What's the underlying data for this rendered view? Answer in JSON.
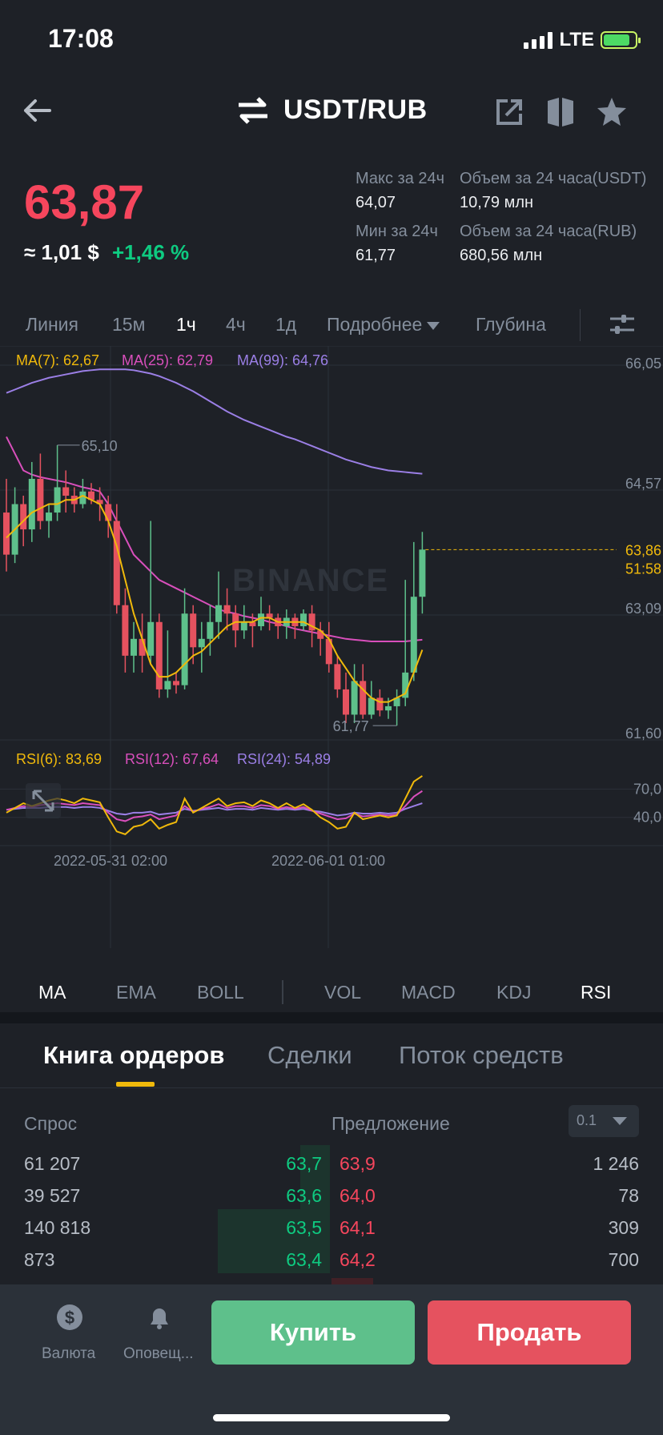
{
  "status": {
    "time": "17:08",
    "network": "LTE"
  },
  "header": {
    "pair": "USDT/RUB"
  },
  "ticker": {
    "last_price": "63,87",
    "approx_usd": "≈ 1,01 $",
    "change_pct": "+1,46 %",
    "high_label": "Макс за 24ч",
    "high_value": "64,07",
    "low_label": "Мин за 24ч",
    "low_value": "61,77",
    "vol_base_label": "Объем за 24 часа(USDT)",
    "vol_base_value": "10,79 млн",
    "vol_quote_label": "Объем за 24 часа(RUB)",
    "vol_quote_value": "680,56 млн"
  },
  "intervals": [
    "Линия",
    "15м",
    "1ч",
    "4ч",
    "1д",
    "Подробнее",
    "Глубина"
  ],
  "active_interval": "1ч",
  "chart_data": {
    "type": "candlestick",
    "ma_legend": [
      "MA(7): 62,67",
      "MA(25): 62,79",
      "MA(99): 64,76"
    ],
    "y_ticks": [
      "66,05",
      "64,57",
      "63,09",
      "61,60"
    ],
    "y_range": [
      61.6,
      66.05
    ],
    "current_price_label": "63,86",
    "countdown_label": "51:58",
    "high_marker": "65,10",
    "low_marker": "61,77",
    "watermark": "BINANCE",
    "x_labels": [
      "2022-05-31 02:00",
      "2022-06-01 01:00"
    ],
    "candles": [
      [
        64.3,
        63.8,
        64.7,
        63.6
      ],
      [
        63.8,
        64.4,
        64.6,
        63.7
      ],
      [
        64.4,
        64.1,
        64.5,
        63.9
      ],
      [
        64.1,
        64.7,
        64.9,
        63.95
      ],
      [
        64.7,
        64.2,
        65.0,
        64.1
      ],
      [
        64.2,
        64.3,
        64.4,
        64.0
      ],
      [
        64.3,
        64.6,
        65.1,
        64.2
      ],
      [
        64.6,
        64.5,
        64.8,
        64.3
      ],
      [
        64.5,
        64.4,
        64.6,
        64.3
      ],
      [
        64.4,
        64.55,
        64.7,
        64.35
      ],
      [
        64.55,
        64.45,
        64.65,
        64.4
      ],
      [
        64.45,
        64.4,
        64.6,
        64.2
      ],
      [
        64.4,
        64.2,
        64.5,
        64.0
      ],
      [
        64.2,
        63.2,
        64.4,
        63.1
      ],
      [
        63.2,
        62.6,
        63.4,
        62.4
      ],
      [
        62.6,
        62.8,
        63.0,
        62.4
      ],
      [
        62.8,
        62.6,
        63.1,
        62.4
      ],
      [
        62.6,
        63.0,
        64.2,
        62.5
      ],
      [
        63.0,
        62.2,
        63.1,
        62.1
      ],
      [
        62.2,
        62.3,
        62.9,
        62.1
      ],
      [
        62.3,
        62.25,
        62.4,
        62.15
      ],
      [
        62.25,
        63.1,
        63.4,
        62.2
      ],
      [
        63.1,
        62.7,
        63.2,
        62.5
      ],
      [
        62.7,
        62.8,
        63.0,
        62.4
      ],
      [
        62.8,
        63.0,
        63.2,
        62.6
      ],
      [
        63.0,
        63.2,
        63.6,
        62.8
      ],
      [
        63.2,
        63.1,
        63.4,
        62.9
      ],
      [
        63.1,
        62.9,
        63.2,
        62.7
      ],
      [
        62.9,
        63.0,
        63.2,
        62.8
      ],
      [
        63.0,
        62.95,
        63.1,
        62.7
      ],
      [
        62.95,
        63.1,
        63.3,
        62.9
      ],
      [
        63.1,
        63.05,
        63.2,
        62.9
      ],
      [
        63.05,
        62.95,
        63.1,
        62.8
      ],
      [
        62.95,
        63.05,
        63.15,
        62.8
      ],
      [
        63.05,
        62.95,
        63.1,
        62.8
      ],
      [
        62.95,
        63.1,
        63.15,
        62.9
      ],
      [
        63.1,
        62.9,
        63.2,
        62.7
      ],
      [
        62.9,
        62.8,
        63.0,
        62.6
      ],
      [
        62.8,
        62.5,
        63.0,
        62.4
      ],
      [
        62.5,
        62.2,
        62.6,
        62.1
      ],
      [
        62.2,
        61.9,
        62.4,
        61.8
      ],
      [
        61.9,
        62.3,
        62.5,
        61.8
      ],
      [
        62.3,
        61.9,
        62.5,
        61.85
      ],
      [
        61.9,
        62.1,
        62.3,
        61.85
      ],
      [
        62.1,
        61.95,
        62.2,
        61.88
      ],
      [
        61.95,
        62.0,
        62.1,
        61.85
      ],
      [
        62.0,
        62.1,
        62.2,
        61.77
      ],
      [
        62.1,
        62.4,
        63.5,
        62.0
      ],
      [
        62.4,
        63.3,
        63.95,
        62.3
      ],
      [
        63.3,
        63.86,
        64.07,
        63.1
      ]
    ],
    "ma7": [
      64.0,
      64.1,
      64.2,
      64.3,
      64.35,
      64.4,
      64.4,
      64.45,
      64.45,
      64.5,
      64.45,
      64.4,
      64.2,
      63.9,
      63.5,
      63.1,
      62.8,
      62.5,
      62.35,
      62.35,
      62.4,
      62.5,
      62.6,
      62.65,
      62.75,
      62.85,
      62.95,
      63.0,
      63.0,
      63.0,
      63.05,
      63.05,
      63.0,
      63.0,
      63.0,
      63.0,
      62.95,
      62.9,
      62.8,
      62.6,
      62.45,
      62.3,
      62.2,
      62.1,
      62.05,
      62.05,
      62.1,
      62.15,
      62.4,
      62.67
    ],
    "ma25": [
      65.2,
      65.0,
      64.8,
      64.75,
      64.72,
      64.7,
      64.68,
      64.66,
      64.63,
      64.6,
      64.58,
      64.55,
      64.4,
      64.2,
      64.0,
      63.8,
      63.7,
      63.6,
      63.5,
      63.45,
      63.4,
      63.35,
      63.3,
      63.25,
      63.2,
      63.15,
      63.12,
      63.1,
      63.07,
      63.05,
      63.03,
      63.0,
      62.98,
      62.95,
      62.92,
      62.9,
      62.88,
      62.86,
      62.84,
      62.82,
      62.8,
      62.79,
      62.78,
      62.77,
      62.77,
      62.77,
      62.77,
      62.77,
      62.78,
      62.79
    ],
    "ma99": [
      65.72,
      65.76,
      65.8,
      65.84,
      65.87,
      65.9,
      65.92,
      65.94,
      65.96,
      65.98,
      65.99,
      66.0,
      66.0,
      66.0,
      66.0,
      65.99,
      65.97,
      65.95,
      65.92,
      65.88,
      65.84,
      65.79,
      65.74,
      65.68,
      65.62,
      65.56,
      65.5,
      65.45,
      65.4,
      65.36,
      65.32,
      65.28,
      65.24,
      65.2,
      65.17,
      65.13,
      65.09,
      65.05,
      65.01,
      64.97,
      64.93,
      64.9,
      64.87,
      64.84,
      64.82,
      64.8,
      64.79,
      64.78,
      64.77,
      64.76
    ]
  },
  "rsi": {
    "legend": [
      "RSI(6): 83,69",
      "RSI(12): 67,64",
      "RSI(24): 54,89"
    ],
    "y_ticks": [
      "70,0",
      "40,0"
    ],
    "rsi6": [
      45,
      50,
      55,
      52,
      55,
      58,
      60,
      58,
      55,
      60,
      58,
      56,
      40,
      25,
      22,
      30,
      32,
      38,
      28,
      32,
      35,
      60,
      45,
      50,
      55,
      60,
      52,
      55,
      56,
      52,
      58,
      55,
      50,
      55,
      50,
      54,
      48,
      40,
      35,
      28,
      30,
      45,
      38,
      40,
      42,
      40,
      42,
      60,
      78,
      84
    ],
    "rsi12": [
      48,
      50,
      52,
      51,
      53,
      54,
      55,
      54,
      53,
      55,
      54,
      53,
      45,
      38,
      36,
      40,
      41,
      43,
      38,
      40,
      42,
      52,
      46,
      49,
      51,
      54,
      50,
      52,
      52,
      50,
      53,
      52,
      49,
      51,
      49,
      51,
      47,
      44,
      41,
      38,
      39,
      44,
      41,
      42,
      43,
      42,
      43,
      52,
      62,
      68
    ],
    "rsi24": [
      48,
      49,
      50,
      50,
      50,
      51,
      51,
      51,
      50,
      51,
      51,
      50,
      47,
      44,
      43,
      45,
      45,
      46,
      43,
      44,
      45,
      49,
      47,
      48,
      49,
      50,
      48,
      49,
      49,
      48,
      50,
      49,
      48,
      49,
      48,
      49,
      47,
      46,
      44,
      42,
      43,
      45,
      44,
      44,
      45,
      44,
      45,
      49,
      52,
      55
    ]
  },
  "indicators": [
    "MA",
    "EMA",
    "BOLL",
    "VOL",
    "MACD",
    "KDJ",
    "RSI"
  ],
  "orderbook": {
    "tabs": [
      "Книга ордеров",
      "Сделки",
      "Поток средств"
    ],
    "bid_label": "Спрос",
    "ask_label": "Предложение",
    "depth_step": "0.1",
    "rows": [
      {
        "bid_qty": "61 207",
        "bid_price": "63,7",
        "ask_price": "63,9",
        "ask_qty": "1 246",
        "bid_depth": 0.09,
        "ask_depth": 0.0
      },
      {
        "bid_qty": "39 527",
        "bid_price": "63,6",
        "ask_price": "64,0",
        "ask_qty": "78",
        "bid_depth": 0.09,
        "ask_depth": 0.0
      },
      {
        "bid_qty": "140 818",
        "bid_price": "63,5",
        "ask_price": "64,1",
        "ask_qty": "309",
        "bid_depth": 0.34,
        "ask_depth": 0.0
      },
      {
        "bid_qty": "873",
        "bid_price": "63,4",
        "ask_price": "64,2",
        "ask_qty": "700",
        "bid_depth": 0.34,
        "ask_depth": 0.0
      }
    ]
  },
  "bottom": {
    "currency_label": "Валюта",
    "alerts_label": "Оповещ...",
    "buy_label": "Купить",
    "sell_label": "Продать"
  }
}
